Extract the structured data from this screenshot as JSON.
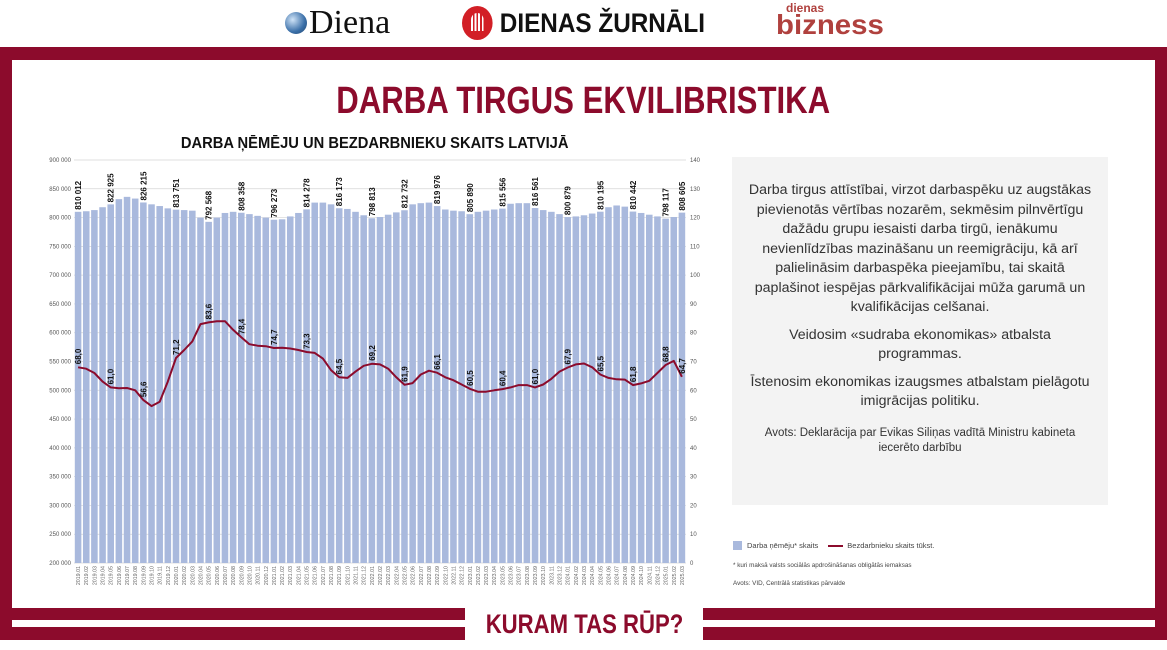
{
  "header": {
    "logos": [
      "Diena",
      "DIENAS ŽURNĀLI",
      "dienas bizness"
    ]
  },
  "page_title": "DARBA TIRGUS EKVILIBRISTIKA",
  "footer_tab": "KURAM TAS RŪP?",
  "colors": {
    "brand": "#8c0b2c",
    "bars": "#a9b9dd",
    "line": "#8c0b2c",
    "textbox_bg": "#f3f3f3"
  },
  "textbox": {
    "paragraphs": [
      "Darba tirgus attīstībai, virzot darbaspēku uz augstākas pievienotās vērtības nozarēm, sekmēsim pilnvērtīgu dažādu grupu iesaisti darba tirgū, ienākumu nevienlīdzības mazināšanu un reemigrāciju, kā arī palielināsim darbaspēka pieejamību, tai skaitā paplašinot iespējas pārkvalifikācijai mūža garumā un kvalifikācijas celšanai.",
      "Veidosim «sudraba ekonomikas» atbalsta programmas.",
      "Īstenosim ekonomikas izaugsmes atbalstam pielāgotu imigrācijas politiku."
    ],
    "source": "Avots: Deklarācija par Evikas Siliņas vadītā Ministru kabineta iecerēto darbību"
  },
  "chart_data": {
    "type": "bar+line",
    "title": "DARBA ŅĒMĒJU UN BEZDARBNIEKU SKAITS LATVIJĀ",
    "categories": [
      "2019.01",
      "2019.02",
      "2019.03",
      "2019.04",
      "2019.05",
      "2019.06",
      "2019.07",
      "2019.08",
      "2019.09",
      "2019.10",
      "2019.11",
      "2019.12",
      "2020.01",
      "2020.02",
      "2020.03",
      "2020.04",
      "2020.05",
      "2020.06",
      "2020.07",
      "2020.08",
      "2020.09",
      "2020.10",
      "2020.11",
      "2020.12",
      "2021.01",
      "2021.02",
      "2021.03",
      "2021.04",
      "2021.05",
      "2021.06",
      "2021.07",
      "2021.08",
      "2021.09",
      "2021.10",
      "2021.11",
      "2021.12",
      "2022.01",
      "2022.02",
      "2022.03",
      "2022.04",
      "2022.05",
      "2022.06",
      "2022.07",
      "2022.08",
      "2022.09",
      "2022.10",
      "2022.11",
      "2022.12",
      "2023.01",
      "2023.02",
      "2023.03",
      "2023.04",
      "2023.05",
      "2023.06",
      "2023.07",
      "2023.08",
      "2023.09",
      "2023.10",
      "2023.11",
      "2023.12",
      "2024.01",
      "2024.02",
      "2024.03",
      "2024.04",
      "2024.05",
      "2024.06",
      "2024.07",
      "2024.08",
      "2024.09",
      "2024.10",
      "2024.11",
      "2024.12",
      "2025.01",
      "2025.02",
      "2025.03"
    ],
    "series": [
      {
        "name": "Darba ņēmēju* skaits",
        "type": "bar",
        "axis": "left",
        "values": [
          810012,
          811000,
          813000,
          818000,
          822925,
          832000,
          836000,
          833000,
          826215,
          823000,
          820000,
          816000,
          813751,
          813000,
          812000,
          800000,
          792568,
          800000,
          808000,
          810000,
          808358,
          806000,
          803000,
          800000,
          796273,
          797000,
          802000,
          808000,
          814278,
          826000,
          826000,
          823000,
          816173,
          815000,
          810000,
          804000,
          798813,
          801000,
          805000,
          809000,
          812732,
          823000,
          825000,
          826000,
          819976,
          814000,
          812000,
          811000,
          805890,
          810000,
          812000,
          814000,
          815556,
          824000,
          825000,
          825000,
          816561,
          813000,
          810000,
          806000,
          800879,
          802000,
          804000,
          807000,
          810195,
          818000,
          821000,
          819000,
          810442,
          808000,
          805000,
          802000,
          798117,
          801000,
          808605
        ],
        "labels": {
          "0": "810 012",
          "4": "822 925",
          "8": "826 215",
          "12": "813 751",
          "16": "792 568",
          "20": "808 358",
          "24": "796 273",
          "28": "814 278",
          "32": "816 173",
          "36": "798 813",
          "40": "812 732",
          "44": "819 976",
          "48": "805 890",
          "52": "815 556",
          "56": "816 561",
          "60": "800 879",
          "64": "810 195",
          "68": "810 442",
          "72": "798 117",
          "74": "808 605"
        }
      },
      {
        "name": "Bezdarbnieku skaits tūkst.",
        "type": "line",
        "axis": "right",
        "values": [
          68.0,
          67.5,
          66,
          63,
          61.0,
          60.7,
          60.8,
          60,
          56.6,
          54.5,
          56,
          63,
          71.2,
          74,
          77,
          83,
          83.6,
          84,
          84,
          81,
          78.4,
          76,
          75.5,
          75.3,
          74.7,
          74.8,
          74.5,
          74,
          73.3,
          73,
          71,
          67,
          64.5,
          64.3,
          66.5,
          68.5,
          69.2,
          69,
          67.5,
          64.5,
          61.9,
          62.5,
          65.5,
          66.8,
          66.1,
          64.5,
          63.5,
          62,
          60.5,
          59.5,
          59.5,
          60,
          60.4,
          61,
          61.8,
          61.8,
          61.0,
          62,
          64,
          66.5,
          67.9,
          69,
          69.3,
          68,
          65.5,
          64.3,
          63.8,
          63.7,
          61.8,
          62.4,
          63.3,
          66,
          68.8,
          70.2,
          64.7
        ],
        "labels": {
          "0": "68,0",
          "4": "61,0",
          "8": "56,6",
          "12": "71,2",
          "16": "83,6",
          "20": "78,4",
          "24": "74,7",
          "28": "73,3",
          "32": "64,5",
          "36": "69,2",
          "40": "61,9",
          "44": "66,1",
          "48": "60,5",
          "52": "60,4",
          "56": "61,0",
          "60": "67,9",
          "64": "65,5",
          "68": "61,8",
          "72": "68,8",
          "74": "64,7"
        }
      }
    ],
    "y_left": {
      "range": [
        200000,
        900000
      ],
      "ticks": [
        "200 000",
        "250 000",
        "300 000",
        "350 000",
        "400 000",
        "450 000",
        "500 000",
        "550 000",
        "600 000",
        "650 000",
        "700 000",
        "750 000",
        "800 000",
        "850 000",
        "900 000"
      ]
    },
    "y_right": {
      "range": [
        0,
        140
      ],
      "ticks": [
        "0",
        "10",
        "20",
        "30",
        "40",
        "50",
        "60",
        "70",
        "80",
        "90",
        "100",
        "110",
        "120",
        "130",
        "140"
      ]
    },
    "grid": true,
    "legend_position": "bottom-right",
    "footnote": "* kuri maksā valsts sociālās apdrošināšanas obligātās iemaksas",
    "source": "Avots: VID, Centrālā statistikas pārvalde"
  }
}
